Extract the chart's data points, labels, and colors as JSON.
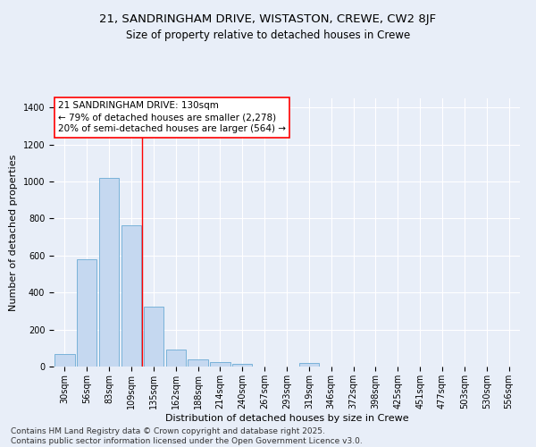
{
  "title_line1": "21, SANDRINGHAM DRIVE, WISTASTON, CREWE, CW2 8JF",
  "title_line2": "Size of property relative to detached houses in Crewe",
  "xlabel": "Distribution of detached houses by size in Crewe",
  "ylabel": "Number of detached properties",
  "categories": [
    "30sqm",
    "56sqm",
    "83sqm",
    "109sqm",
    "135sqm",
    "162sqm",
    "188sqm",
    "214sqm",
    "240sqm",
    "267sqm",
    "293sqm",
    "319sqm",
    "346sqm",
    "372sqm",
    "398sqm",
    "425sqm",
    "451sqm",
    "477sqm",
    "503sqm",
    "530sqm",
    "556sqm"
  ],
  "values": [
    70,
    578,
    1022,
    762,
    325,
    93,
    38,
    25,
    15,
    0,
    0,
    18,
    0,
    0,
    0,
    0,
    0,
    0,
    0,
    0,
    0
  ],
  "bar_color": "#c5d8f0",
  "bar_edge_color": "#6aaad4",
  "red_line_index": 4,
  "annotation_box_text": "21 SANDRINGHAM DRIVE: 130sqm\n← 79% of detached houses are smaller (2,278)\n20% of semi-detached houses are larger (564) →",
  "ylim": [
    0,
    1450
  ],
  "yticks": [
    0,
    200,
    400,
    600,
    800,
    1000,
    1200,
    1400
  ],
  "bg_color": "#e8eef8",
  "grid_color": "#ffffff",
  "footer_line1": "Contains HM Land Registry data © Crown copyright and database right 2025.",
  "footer_line2": "Contains public sector information licensed under the Open Government Licence v3.0.",
  "title_fontsize": 9.5,
  "subtitle_fontsize": 8.5,
  "axis_label_fontsize": 8,
  "tick_fontsize": 7,
  "annotation_fontsize": 7.5,
  "footer_fontsize": 6.5
}
